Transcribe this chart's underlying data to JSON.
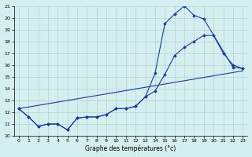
{
  "xlabel": "Graphe des températures (°c)",
  "xlim": [
    -0.5,
    23.5
  ],
  "ylim": [
    10,
    21
  ],
  "xticks": [
    0,
    1,
    2,
    3,
    4,
    5,
    6,
    7,
    8,
    9,
    10,
    11,
    12,
    13,
    14,
    15,
    16,
    17,
    18,
    19,
    20,
    21,
    22,
    23
  ],
  "yticks": [
    10,
    11,
    12,
    13,
    14,
    15,
    16,
    17,
    18,
    19,
    20,
    21
  ],
  "bg_color": "#d4efed",
  "grid_color": "#aed4d0",
  "line_color": "#1a3aaa",
  "series": [
    {
      "x": [
        0,
        1,
        2,
        3,
        4,
        5,
        6,
        7,
        8,
        9,
        10,
        11,
        12,
        13,
        14,
        15,
        16,
        17,
        18,
        19,
        22,
        23
      ],
      "y": [
        12.3,
        11.6,
        10.8,
        11.0,
        11.0,
        10.5,
        11.5,
        11.6,
        11.6,
        11.8,
        12.3,
        12.3,
        12.5,
        13.3,
        15.3,
        19.5,
        20.3,
        21.0,
        20.2,
        19.9,
        15.8,
        15.7
      ]
    },
    {
      "x": [
        0,
        1,
        2,
        3,
        4,
        5,
        6,
        7,
        8,
        9,
        10,
        11,
        12,
        13,
        14,
        15,
        16,
        17,
        18,
        19,
        20,
        21,
        22,
        23
      ],
      "y": [
        12.3,
        11.6,
        10.8,
        11.0,
        11.0,
        10.5,
        11.5,
        11.6,
        11.6,
        11.8,
        12.3,
        12.3,
        12.5,
        13.3,
        13.8,
        15.2,
        16.8,
        17.5,
        18.0,
        18.5,
        18.5,
        17.0,
        16.0,
        15.7
      ]
    },
    {
      "x": [
        0,
        23
      ],
      "y": [
        12.3,
        15.5
      ]
    }
  ]
}
